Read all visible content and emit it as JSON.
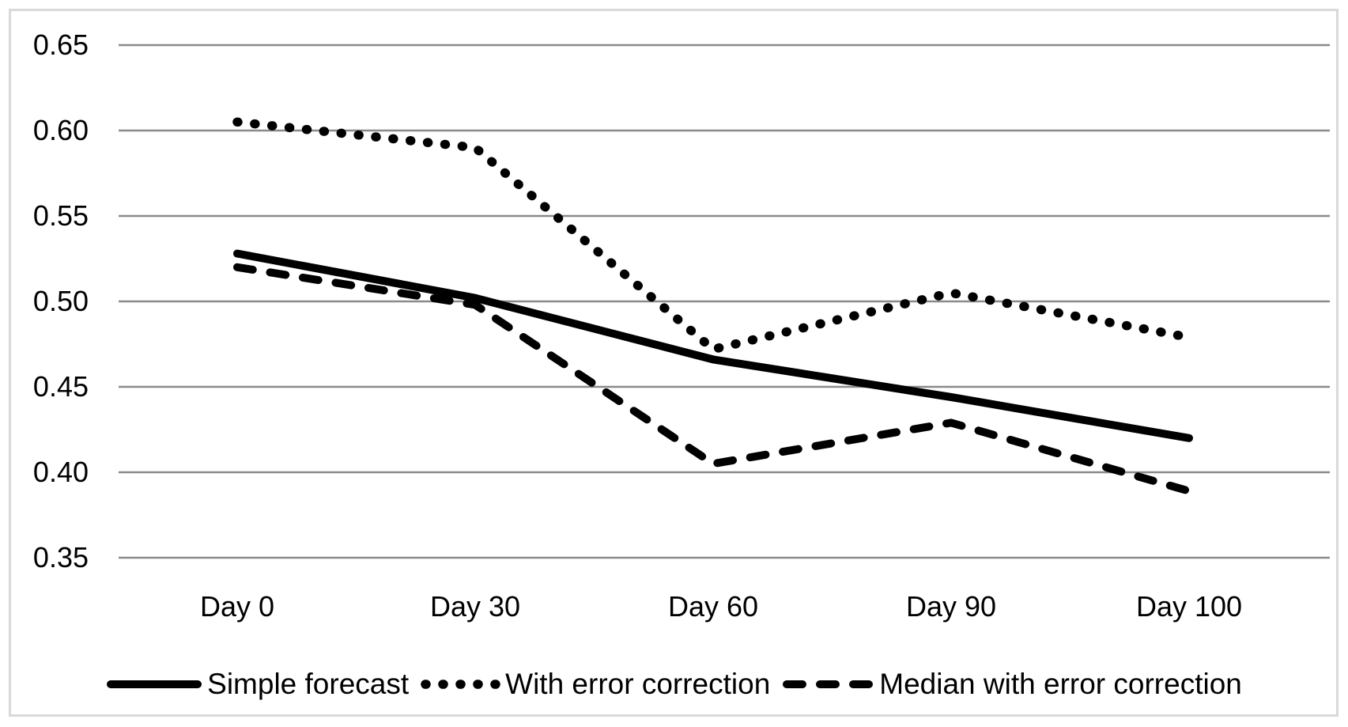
{
  "chart_data": {
    "type": "line",
    "title": "",
    "xlabel": "",
    "ylabel": "",
    "categories": [
      "Day 0",
      "Day 30",
      "Day 60",
      "Day 90",
      "Day 100"
    ],
    "series": [
      {
        "name": "Simple forecast",
        "style": "solid",
        "values": [
          0.528,
          0.502,
          0.466,
          0.444,
          0.42
        ]
      },
      {
        "name": "With error correction",
        "style": "dotted",
        "values": [
          0.605,
          0.59,
          0.472,
          0.505,
          0.479
        ]
      },
      {
        "name": "Median with error correction",
        "style": "dashed",
        "values": [
          0.52,
          0.498,
          0.405,
          0.429,
          0.389
        ]
      }
    ],
    "ylim": [
      0.35,
      0.65
    ],
    "y_ticks": [
      0.65,
      0.6,
      0.55,
      0.5,
      0.45,
      0.4,
      0.35
    ],
    "y_tick_labels": [
      "0.65",
      "0.60",
      "0.55",
      "0.50",
      "0.45",
      "0.40",
      "0.35"
    ],
    "grid": "horizontal",
    "legend_position": "bottom",
    "line_color": "#000000",
    "gridline_color": "#8a8a8a",
    "frame_border_color": "#d9d9d9",
    "background_color": "#ffffff"
  }
}
